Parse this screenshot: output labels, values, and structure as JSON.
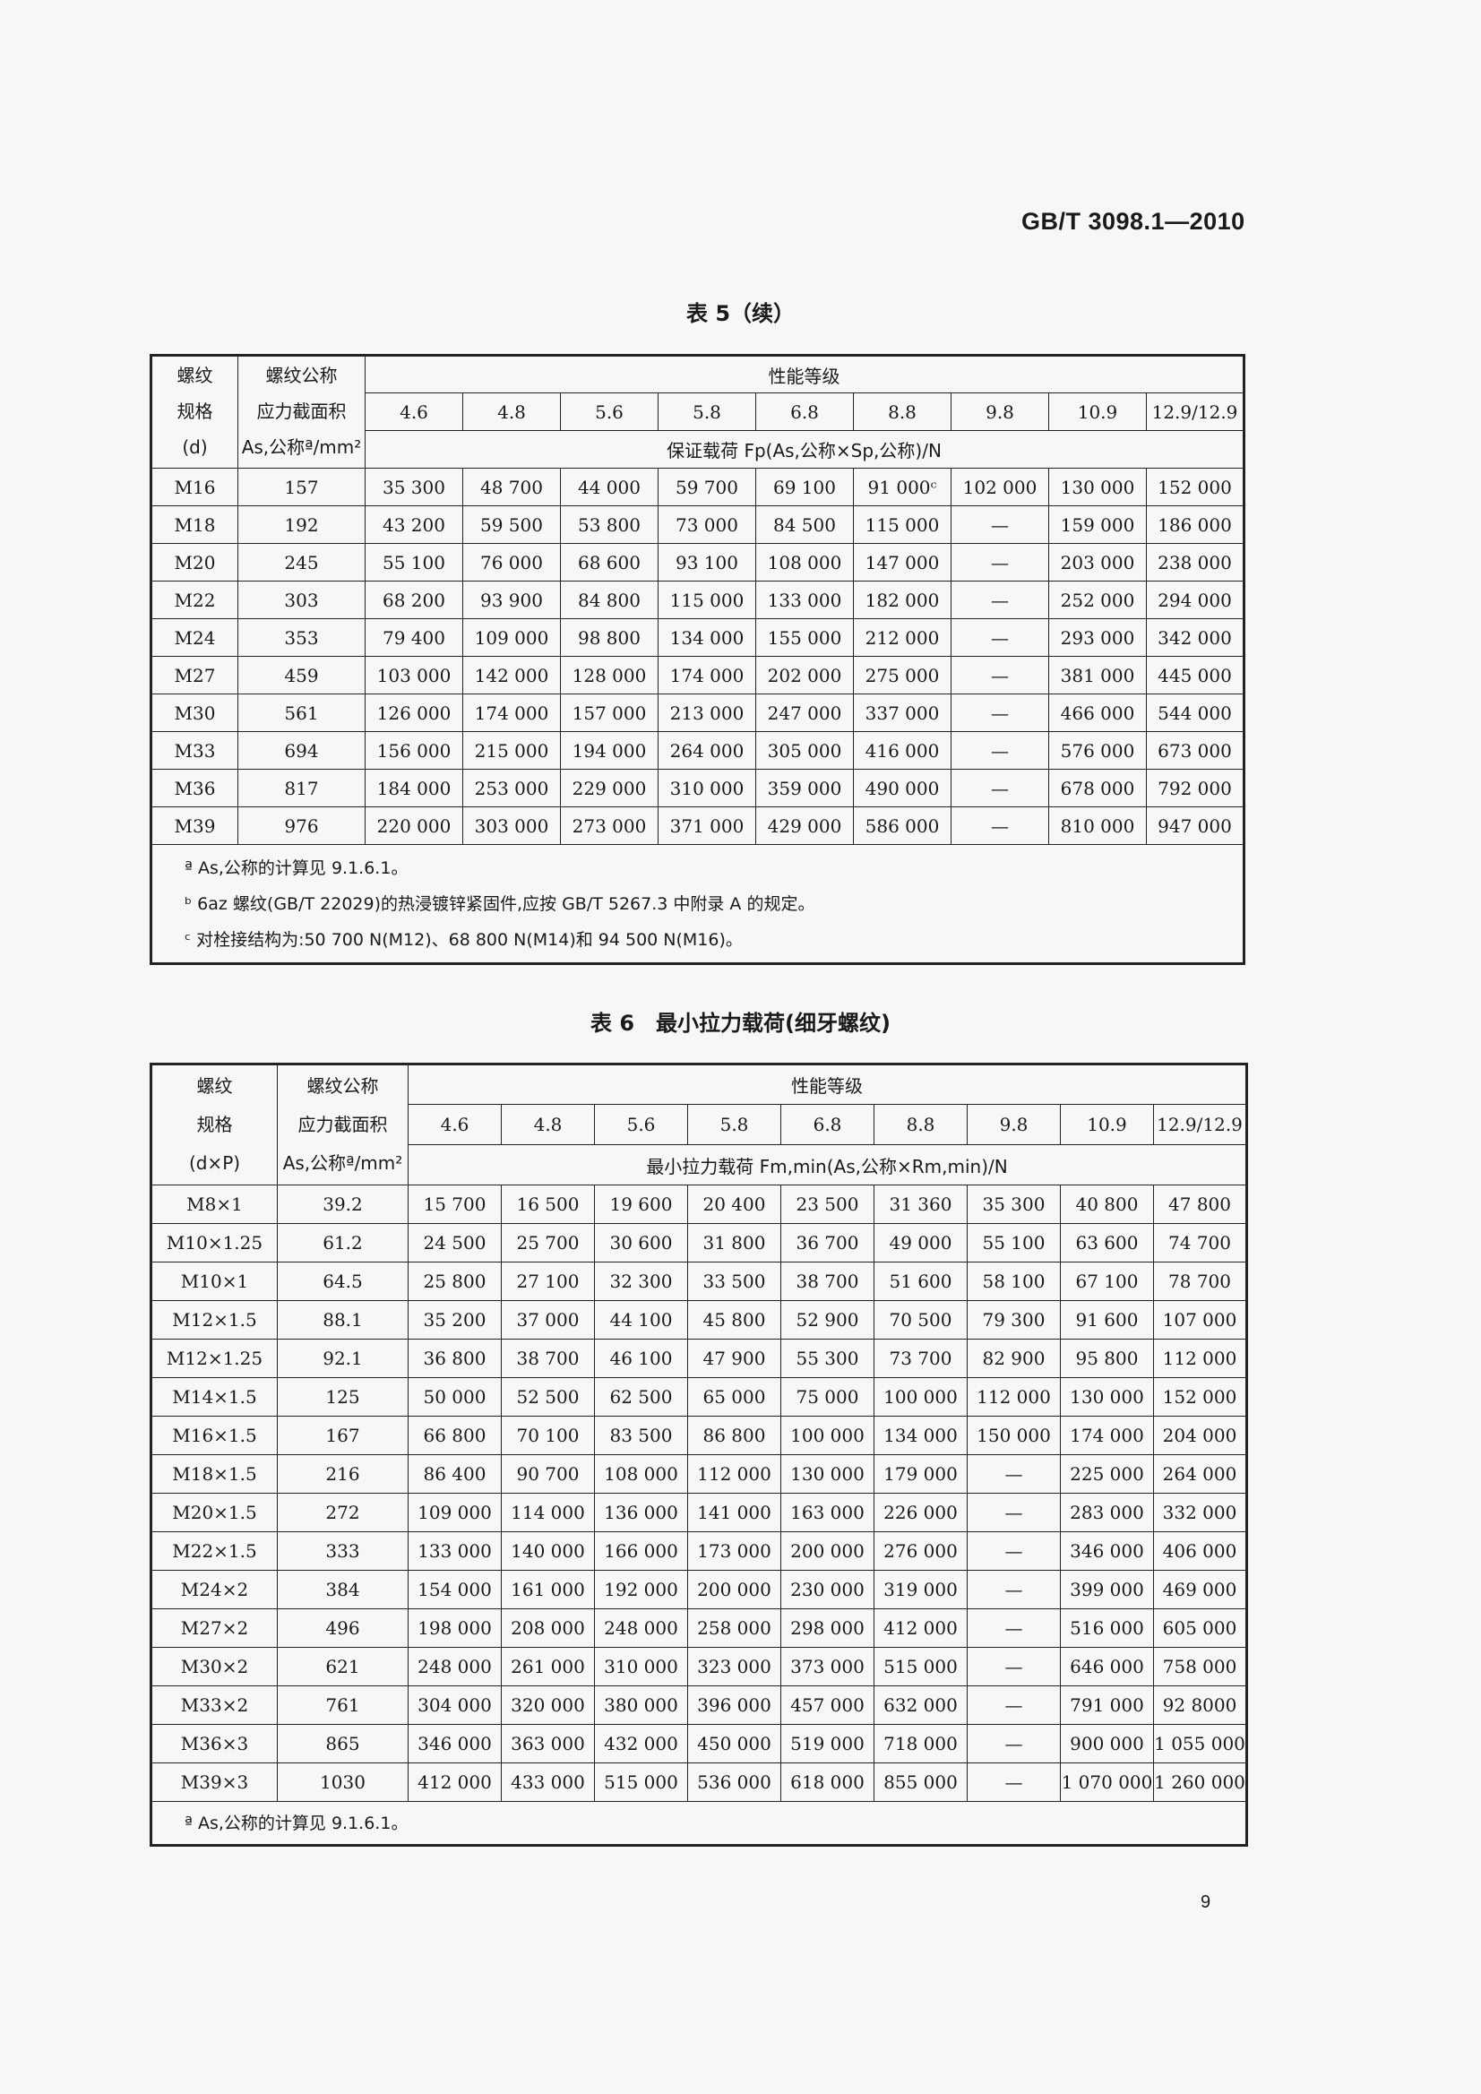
{
  "header": {
    "standard_no": "GB/T 3098.1—2010"
  },
  "table5": {
    "title": "表 5（续）",
    "col1": [
      "螺纹",
      "规格",
      "(d)"
    ],
    "col2": [
      "螺纹公称",
      "应力截面积",
      "As,公称ª/mm²"
    ],
    "group_header": "性能等级",
    "grades": [
      "4.6",
      "4.8",
      "5.6",
      "5.8",
      "6.8",
      "8.8",
      "9.8",
      "10.9",
      "12.9/12.9"
    ],
    "load_header": "保证载荷 Fp(As,公称×Sp,公称)/N",
    "rows": [
      [
        "M16",
        "157",
        "35 300",
        "48 700",
        "44 000",
        "59 700",
        "69 100",
        "91 000ᶜ",
        "102 000",
        "130 000",
        "152 000"
      ],
      [
        "M18",
        "192",
        "43 200",
        "59 500",
        "53 800",
        "73 000",
        "84 500",
        "115 000",
        "—",
        "159 000",
        "186 000"
      ],
      [
        "M20",
        "245",
        "55 100",
        "76 000",
        "68 600",
        "93 100",
        "108 000",
        "147 000",
        "—",
        "203 000",
        "238 000"
      ],
      [
        "M22",
        "303",
        "68 200",
        "93 900",
        "84 800",
        "115 000",
        "133 000",
        "182 000",
        "—",
        "252 000",
        "294 000"
      ],
      [
        "M24",
        "353",
        "79 400",
        "109 000",
        "98 800",
        "134 000",
        "155 000",
        "212 000",
        "—",
        "293 000",
        "342 000"
      ],
      [
        "M27",
        "459",
        "103 000",
        "142 000",
        "128 000",
        "174 000",
        "202 000",
        "275 000",
        "—",
        "381 000",
        "445 000"
      ],
      [
        "M30",
        "561",
        "126 000",
        "174 000",
        "157 000",
        "213 000",
        "247 000",
        "337 000",
        "—",
        "466 000",
        "544 000"
      ],
      [
        "M33",
        "694",
        "156 000",
        "215 000",
        "194 000",
        "264 000",
        "305 000",
        "416 000",
        "—",
        "576 000",
        "673 000"
      ],
      [
        "M36",
        "817",
        "184 000",
        "253 000",
        "229 000",
        "310 000",
        "359 000",
        "490 000",
        "—",
        "678 000",
        "792 000"
      ],
      [
        "M39",
        "976",
        "220 000",
        "303 000",
        "273 000",
        "371 000",
        "429 000",
        "586 000",
        "—",
        "810 000",
        "947 000"
      ]
    ],
    "footnotes": [
      "ª As,公称的计算见 9.1.6.1。",
      "ᵇ 6az 螺纹(GB/T 22029)的热浸镀锌紧固件,应按 GB/T 5267.3 中附录 A 的规定。",
      "ᶜ 对栓接结构为:50 700 N(M12)、68 800 N(M14)和 94 500 N(M16)。"
    ]
  },
  "table6": {
    "title": "表 6　最小拉力载荷(细牙螺纹)",
    "col1": [
      "螺纹",
      "规格",
      "(d×P)"
    ],
    "col2": [
      "螺纹公称",
      "应力截面积",
      "As,公称ª/mm²"
    ],
    "group_header": "性能等级",
    "grades": [
      "4.6",
      "4.8",
      "5.6",
      "5.8",
      "6.8",
      "8.8",
      "9.8",
      "10.9",
      "12.9/12.9"
    ],
    "load_header": "最小拉力载荷 Fm,min(As,公称×Rm,min)/N",
    "rows": [
      [
        "M8×1",
        "39.2",
        "15 700",
        "16 500",
        "19 600",
        "20 400",
        "23 500",
        "31 360",
        "35 300",
        "40 800",
        "47 800"
      ],
      [
        "M10×1.25",
        "61.2",
        "24 500",
        "25 700",
        "30 600",
        "31 800",
        "36 700",
        "49 000",
        "55 100",
        "63 600",
        "74 700"
      ],
      [
        "M10×1",
        "64.5",
        "25 800",
        "27 100",
        "32 300",
        "33 500",
        "38 700",
        "51 600",
        "58 100",
        "67 100",
        "78 700"
      ],
      [
        "M12×1.5",
        "88.1",
        "35 200",
        "37 000",
        "44 100",
        "45 800",
        "52 900",
        "70 500",
        "79 300",
        "91 600",
        "107 000"
      ],
      [
        "M12×1.25",
        "92.1",
        "36 800",
        "38 700",
        "46 100",
        "47 900",
        "55 300",
        "73 700",
        "82 900",
        "95 800",
        "112 000"
      ],
      [
        "M14×1.5",
        "125",
        "50 000",
        "52 500",
        "62 500",
        "65 000",
        "75 000",
        "100 000",
        "112 000",
        "130 000",
        "152 000"
      ],
      [
        "M16×1.5",
        "167",
        "66 800",
        "70 100",
        "83 500",
        "86 800",
        "100 000",
        "134 000",
        "150 000",
        "174 000",
        "204 000"
      ],
      [
        "M18×1.5",
        "216",
        "86 400",
        "90 700",
        "108 000",
        "112 000",
        "130 000",
        "179 000",
        "—",
        "225 000",
        "264 000"
      ],
      [
        "M20×1.5",
        "272",
        "109 000",
        "114 000",
        "136 000",
        "141 000",
        "163 000",
        "226 000",
        "—",
        "283 000",
        "332 000"
      ],
      [
        "M22×1.5",
        "333",
        "133 000",
        "140 000",
        "166 000",
        "173 000",
        "200 000",
        "276 000",
        "—",
        "346 000",
        "406 000"
      ],
      [
        "M24×2",
        "384",
        "154 000",
        "161 000",
        "192 000",
        "200 000",
        "230 000",
        "319 000",
        "—",
        "399 000",
        "469 000"
      ],
      [
        "M27×2",
        "496",
        "198 000",
        "208 000",
        "248 000",
        "258 000",
        "298 000",
        "412 000",
        "—",
        "516 000",
        "605 000"
      ],
      [
        "M30×2",
        "621",
        "248 000",
        "261 000",
        "310 000",
        "323 000",
        "373 000",
        "515 000",
        "—",
        "646 000",
        "758 000"
      ],
      [
        "M33×2",
        "761",
        "304 000",
        "320 000",
        "380 000",
        "396 000",
        "457 000",
        "632 000",
        "—",
        "791 000",
        "92 8000"
      ],
      [
        "M36×3",
        "865",
        "346 000",
        "363 000",
        "432 000",
        "450 000",
        "519 000",
        "718 000",
        "—",
        "900 000",
        "1 055 000"
      ],
      [
        "M39×3",
        "1030",
        "412 000",
        "433 000",
        "515 000",
        "536 000",
        "618 000",
        "855 000",
        "—",
        "1 070 000",
        "1 260 000"
      ]
    ],
    "footnotes": [
      "ª As,公称的计算见 9.1.6.1。"
    ]
  },
  "page_number": "9"
}
